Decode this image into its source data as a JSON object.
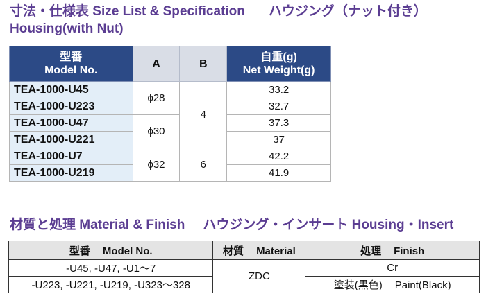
{
  "headings": {
    "size_title_jp": "寸法・仕様表 Size List & Specification",
    "size_title_jp2": "ハウジング（ナット付き）",
    "size_title_en": "Housing(with Nut)",
    "material_title_jp": "材質と処理 Material & Finish",
    "material_title_jp2": "ハウジング・インサート Housing・Insert"
  },
  "size_table": {
    "headers": {
      "model_jp": "型番",
      "model_en": "Model No.",
      "a": "A",
      "b": "B",
      "weight_jp": "自重(g)",
      "weight_en": "Net Weight(g)"
    },
    "rows": [
      {
        "model": "TEA-1000-U45",
        "weight": "33.2"
      },
      {
        "model": "TEA-1000-U223",
        "weight": "32.7"
      },
      {
        "model": "TEA-1000-U47",
        "weight": "37.3"
      },
      {
        "model": "TEA-1000-U221",
        "weight": "37"
      },
      {
        "model": "TEA-1000-U7",
        "weight": "42.2"
      },
      {
        "model": "TEA-1000-U219",
        "weight": "41.9"
      }
    ],
    "a_groups": [
      "ϕ28",
      "ϕ30",
      "ϕ32"
    ],
    "b_groups": [
      "4",
      "6"
    ]
  },
  "material_table": {
    "headers": {
      "model_jp": "型番",
      "model_en": "Model No.",
      "material_jp": "材質",
      "material_en": "Material",
      "finish_jp": "処理",
      "finish_en": "Finish"
    },
    "rows": [
      {
        "models": "-U45, -U47, -U1～7",
        "finish": "Cr"
      },
      {
        "models": "-U223, -U221, -U219, -U323～328",
        "finish_jp": "塗装(黒色)",
        "finish_en": "Paint(Black)"
      }
    ],
    "material": "ZDC"
  }
}
